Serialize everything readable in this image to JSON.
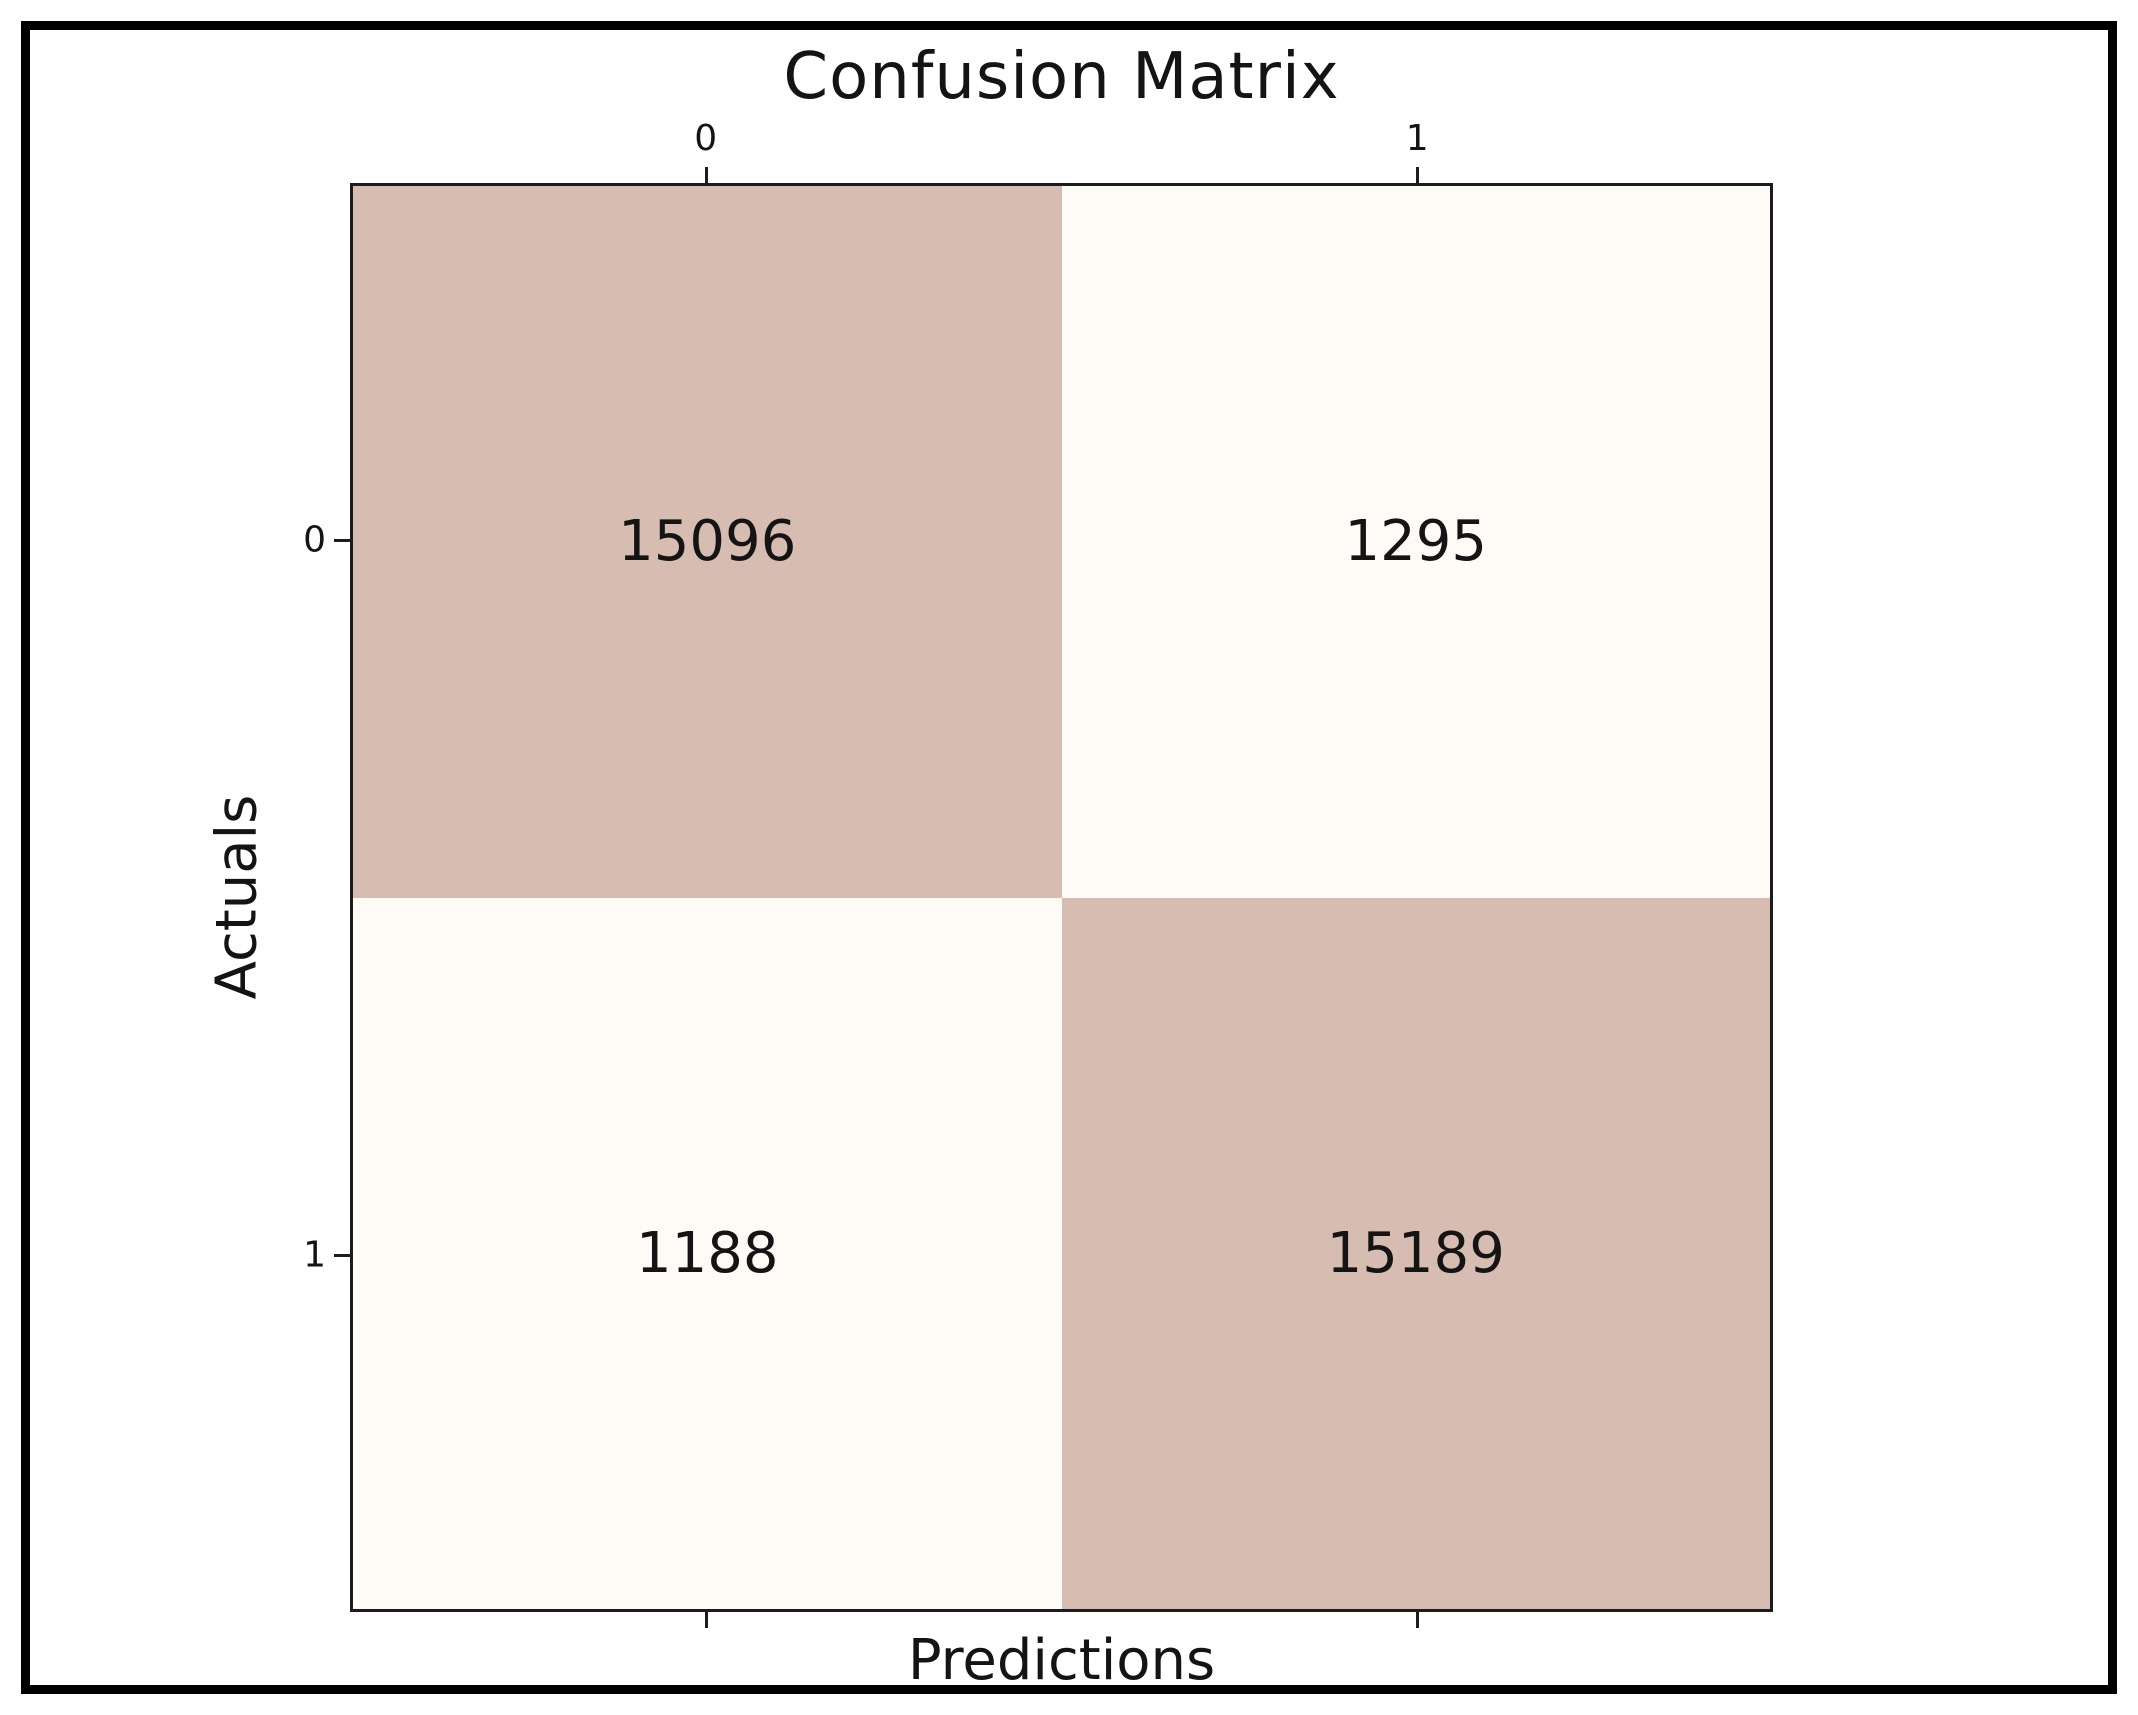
{
  "figure": {
    "background": "#ffffff",
    "frame_color": "#000000"
  },
  "chart_data": {
    "type": "heatmap",
    "title": "Confusion Matrix",
    "xlabel": "Predictions",
    "ylabel": "Actuals",
    "x_tick_labels": [
      "0",
      "1"
    ],
    "y_tick_labels": [
      "0",
      "1"
    ],
    "x_tick_side": "top",
    "legend": "none",
    "grid": "off",
    "matrix": [
      [
        15096,
        1295
      ],
      [
        1188,
        15189
      ]
    ],
    "cells": [
      {
        "actual": "0",
        "predicted": "0",
        "value": "15096",
        "color": "#d6bcb1"
      },
      {
        "actual": "0",
        "predicted": "1",
        "value": "1295",
        "color": "#fefaf5"
      },
      {
        "actual": "1",
        "predicted": "0",
        "value": "1188",
        "color": "#fefaf5"
      },
      {
        "actual": "1",
        "predicted": "1",
        "value": "15189",
        "color": "#d6bcb1"
      }
    ],
    "colors": {
      "high_cell": "#d6bcb1",
      "low_cell": "#fefaf5",
      "spine": "#1c1c1c",
      "text": "#141414"
    }
  }
}
